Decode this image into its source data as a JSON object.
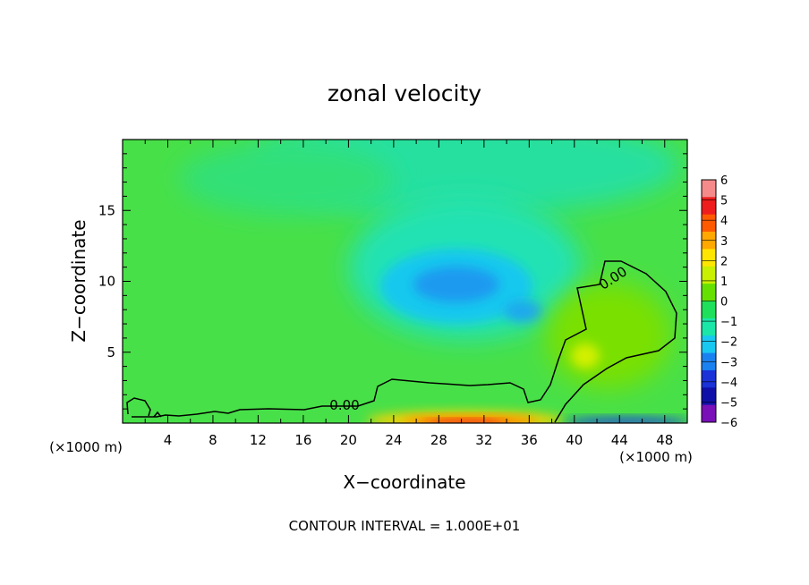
{
  "chart_data": {
    "type": "heatmap",
    "title": "zonal velocity",
    "xlabel": "X−coordinate",
    "ylabel": "Z−coordinate",
    "x_unit_label_left": "(×1000 m)",
    "x_unit_label_right": "(×1000 m)",
    "xlim": [
      0,
      50
    ],
    "ylim": [
      0,
      20
    ],
    "x_ticks": [
      4,
      8,
      12,
      16,
      20,
      24,
      28,
      32,
      36,
      40,
      44,
      48
    ],
    "x_tick_labels": [
      "4",
      "8",
      "12",
      "16",
      "20",
      "24",
      "28",
      "32",
      "36",
      "40",
      "44",
      "48"
    ],
    "y_ticks": [
      5,
      10,
      15
    ],
    "y_tick_labels": [
      "5",
      "10",
      "15"
    ],
    "colorbar": {
      "levels": [
        6,
        5,
        4,
        3,
        2,
        1,
        0,
        -1,
        -2,
        -3,
        -4,
        -5,
        -6
      ],
      "level_labels": [
        "6",
        "5",
        "4",
        "3",
        "2",
        "1",
        "0",
        "−1",
        "−2",
        "−3",
        "−4",
        "−5",
        "−6"
      ],
      "colors": [
        "#f48a8a",
        "#ee1c1c",
        "#ff5a00",
        "#ffa800",
        "#ffe600",
        "#c8f000",
        "#66e000",
        "#1fe05a",
        "#1ae6a8",
        "#18c8f0",
        "#1a82f0",
        "#1a32d8",
        "#1010a8",
        "#7a10b8"
      ]
    },
    "contour_labels": [
      "0.00",
      "0.00"
    ],
    "footer": "CONTOUR INTERVAL = 1.000E+01",
    "features": [
      {
        "x": 30,
        "z": 10.2,
        "value": -2.8
      },
      {
        "x": 35,
        "z": 7.8,
        "value": -2.5
      },
      {
        "x": 41,
        "z": 4.6,
        "value": 1.0
      },
      {
        "x": 31,
        "z": 0.3,
        "value": 4.5
      }
    ]
  }
}
